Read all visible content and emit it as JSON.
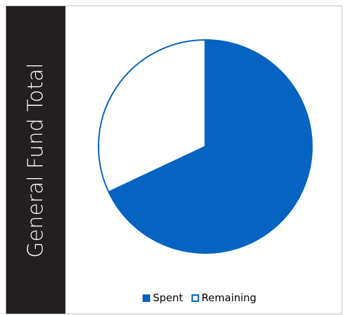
{
  "chart_data": {
    "type": "pie",
    "title": "General Fund Total",
    "categories": [
      "Spent",
      "Remaining"
    ],
    "values": [
      68,
      32
    ],
    "start_angle_deg": 0,
    "direction": "clockwise",
    "legend_position": "bottom",
    "series": [
      {
        "name": "Spent",
        "value": 68,
        "fill": "#0563c1",
        "stroke": "#0563c1"
      },
      {
        "name": "Remaining",
        "value": 32,
        "fill": "#ffffff",
        "stroke": "#0563c1"
      }
    ]
  },
  "colors": {
    "accent": "#0563c1",
    "title_band": "#231f20",
    "title_text": "#ffffff",
    "frame_border": "#bfbfbf"
  }
}
